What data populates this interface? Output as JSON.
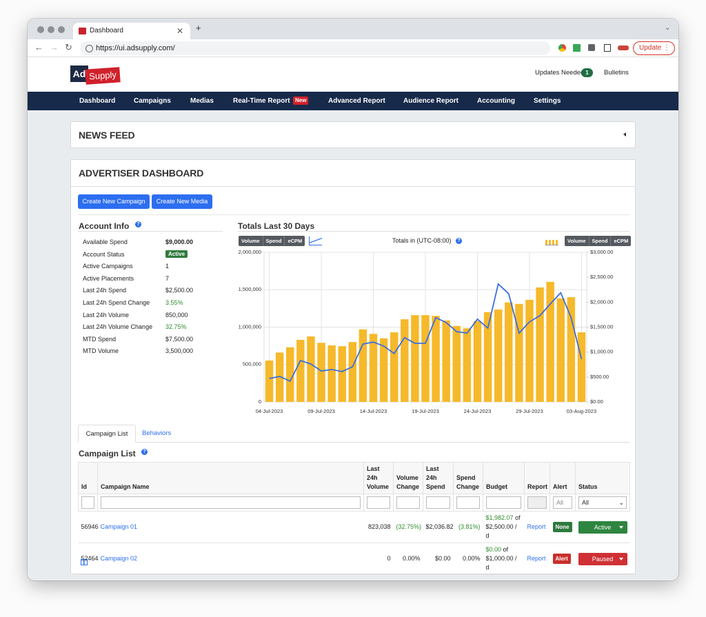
{
  "browser": {
    "tab_title": "Dashboard",
    "url": "https://ui.adsupply.com/",
    "update_button": "Update"
  },
  "header": {
    "logo_ad": "Ad",
    "logo_supply": "Supply",
    "updates_label": "Updates Needed",
    "updates_count": 1,
    "bulletins": "Bulletins"
  },
  "nav": {
    "items": [
      "Dashboard",
      "Campaigns",
      "Medias",
      "Real-Time Report",
      "Advanced Report",
      "Audience Report",
      "Accounting",
      "Settings"
    ],
    "new_badge": "New"
  },
  "news_feed": {
    "title": "NEWS FEED"
  },
  "dashboard": {
    "title": "ADVERTISER DASHBOARD",
    "buttons": [
      "Create New Campaign",
      "Create New Media"
    ]
  },
  "account_info": {
    "title": "Account Info",
    "rows": [
      [
        "Available Spend",
        "$9,000.00"
      ],
      [
        "Account Status",
        "Active"
      ],
      [
        "Active Campaigns",
        "1"
      ],
      [
        "Active Placements",
        "7"
      ],
      [
        "Last 24h Spend",
        "$2,500.00"
      ],
      [
        "Last 24h Spend Change",
        "3.55%"
      ],
      [
        "Last 24h Volume",
        "850,000"
      ],
      [
        "Last 24h Volume Change",
        "32.75%"
      ],
      [
        "MTD Spend",
        "$7,500.00"
      ],
      [
        "MTD Volume",
        "3,500,000"
      ]
    ]
  },
  "chart_data": {
    "type": "bar",
    "title": "Totals Last 30 Days",
    "subtitle": "Totals in (UTC-08:00)",
    "toggles": [
      "Volume",
      "Spend",
      "eCPM"
    ],
    "categories": [
      "04-Jul-2023",
      null,
      null,
      null,
      null,
      "09-Jul-2023",
      null,
      null,
      null,
      null,
      "14-Jul-2023",
      null,
      null,
      null,
      null,
      "19-Jul-2023",
      null,
      null,
      null,
      null,
      "24-Jul-2023",
      null,
      null,
      null,
      null,
      "29-Jul-2023",
      null,
      null,
      null,
      null,
      "03-Aug-2023"
    ],
    "series": [
      {
        "name": "Volume",
        "type": "bar",
        "color": "#f6b92b",
        "values": [
          553000,
          660000,
          730000,
          830000,
          875000,
          790000,
          755000,
          745000,
          800000,
          970000,
          910000,
          850000,
          930000,
          1105000,
          1160000,
          1160000,
          1150000,
          1090000,
          1015000,
          985000,
          1080000,
          1200000,
          1235000,
          1330000,
          1310000,
          1365000,
          1530000,
          1605000,
          1385000,
          1400000,
          930000
        ]
      },
      {
        "name": "Spend",
        "type": "line",
        "axis": "y2",
        "color": "#3a6ee0",
        "values": [
          470,
          510,
          415,
          830,
          760,
          620,
          650,
          610,
          705,
          1160,
          1200,
          1120,
          970,
          1290,
          1175,
          1175,
          1690,
          1590,
          1410,
          1380,
          1660,
          1480,
          2365,
          2170,
          1380,
          1605,
          1730,
          1965,
          2190,
          1690,
          860
        ]
      }
    ],
    "ylim": [
      0,
      2000000
    ],
    "yticks": [
      0,
      {
        "value": 500000,
        "label": "500,000"
      },
      {
        "value": 1000000,
        "label": "1,000,000"
      },
      {
        "value": 1500000,
        "label": "1,500,000"
      },
      {
        "value": 2000000,
        "label": "2,000,000"
      }
    ],
    "y2lim": [
      0,
      3000
    ],
    "y2ticks": [
      {
        "value": 0,
        "label": "$0.00"
      },
      {
        "value": 500,
        "label": "$500.00"
      },
      {
        "value": 1000,
        "label": "$1,000.00"
      },
      {
        "value": 1500,
        "label": "$1,500.00"
      },
      {
        "value": 2000,
        "label": "$2,000.00"
      },
      {
        "value": 2500,
        "label": "$2,500.00"
      },
      {
        "value": 3000,
        "label": "$3,000.00"
      }
    ],
    "grid": true
  },
  "tabs": [
    "Campaign List",
    "Behaviors"
  ],
  "campaign_list": {
    "title": "Campaign List",
    "columns": [
      "Id",
      "Campaign Name",
      "Last 24h Volume",
      "Volume Change",
      "Last 24h Spend",
      "Spend Change",
      "Budget",
      "Report",
      "Alert",
      "Status"
    ],
    "filters": {
      "alert_placeholder": "All",
      "status_select": "All"
    },
    "rows": [
      {
        "id": 56946,
        "name": "Campaign 01",
        "volume": "823,038",
        "volume_change": "(32.75%)",
        "spend": "$2,036.82",
        "spend_change": "(3.81%)",
        "budget_spent": "$1,982.07",
        "budget_rest": "of $2,500.00 / d",
        "report": "Report",
        "alert": "None",
        "status": "Active"
      },
      {
        "id": 52464,
        "name": "Campaign 02",
        "volume": "0",
        "volume_change": "0.00%",
        "spend": "$0.00",
        "spend_change": "0.00%",
        "budget_spent": "$0.00",
        "budget_rest": "of $1,000.00 / d",
        "report": "Report",
        "alert": "Alert",
        "status": "Paused"
      }
    ]
  }
}
